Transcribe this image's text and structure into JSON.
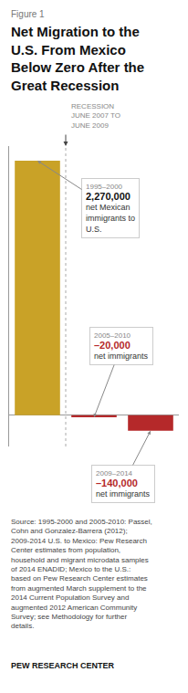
{
  "chart_data": {
    "type": "bar",
    "subtitle": "Figure 1",
    "title": "Net Migration to the U.S. From Mexico Below Zero After the Great Recession",
    "categories": [
      "1995–2000",
      "2005–2010",
      "2009–2014"
    ],
    "values": [
      2270000,
      -20000,
      -140000
    ],
    "value_labels": [
      "2,270,000",
      "–20,000",
      "–140,000"
    ],
    "data_labels": true,
    "colors": [
      "#c9a227",
      "#b5292a",
      "#b5292a"
    ],
    "annotations": [
      "net Mexican immigrants to U.S.",
      "net immigrants",
      "net immigrants"
    ],
    "recession_label": "RECESSION\nJUNE 2007 TO\nJUNE 2009",
    "source": "Source: 1995-2000 and 2005-2010: Passel, Cohn and Gonzalez-Barrera (2012); 2009-2014 U.S. to Mexico: Pew Research Center estimates from population, household and migrant microdata samples of 2014 ENADID; Mexico to the U.S.: based on Pew Research Center estimates from augmented March supplement to the 2014 Current Population Survey and augmented 2012 American Community Survey; see Methodology for further details.",
    "footer": "PEW RESEARCH CENTER",
    "ylim": [
      -280000,
      2400000
    ],
    "yticks": [
      0
    ],
    "grid": false,
    "tick_labels": false
  }
}
